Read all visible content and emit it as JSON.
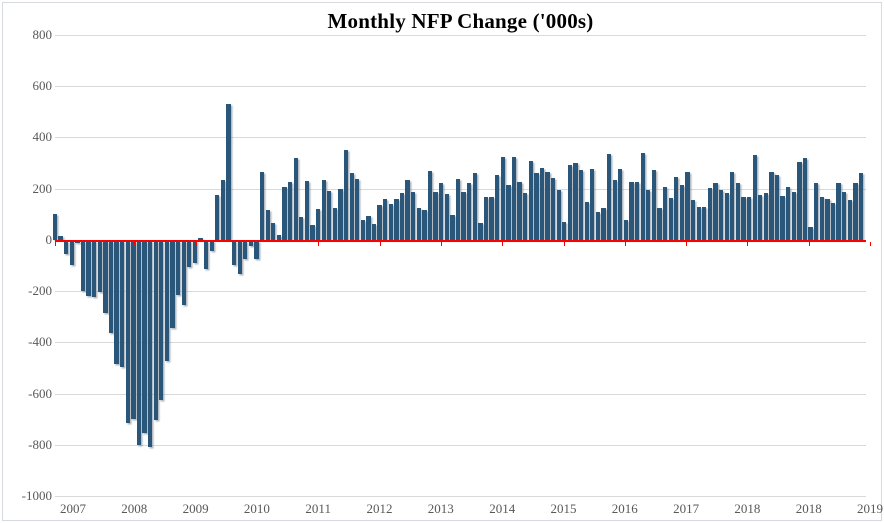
{
  "title": "Monthly NFP Change ('000s)",
  "colors": {
    "bar": "#2a5779",
    "zero_line": "#ff0000",
    "gridline": "#d9d9d9",
    "axis_text": "#595959",
    "title_text": "#000000",
    "frame_border": "#d6dade",
    "background": "#ffffff"
  },
  "y_axis": {
    "tick_labels": [
      "800",
      "600",
      "400",
      "200",
      "0",
      "-200",
      "-400",
      "-600",
      "-800",
      "-1000"
    ],
    "tick_values": [
      800,
      600,
      400,
      200,
      0,
      -200,
      -400,
      -600,
      -800,
      -1000
    ],
    "max": 800,
    "min": -1000
  },
  "x_axis": {
    "tick_labels": [
      "2007",
      "2008",
      "2009",
      "2010",
      "2011",
      "2012",
      "2013",
      "2014",
      "2015",
      "2016",
      "2017",
      "2018",
      "2018",
      "2019"
    ]
  },
  "chart_data": {
    "type": "bar",
    "title": "Monthly NFP Change ('000s)",
    "xlabel": "",
    "ylabel": "",
    "ylim": [
      -1000,
      800
    ],
    "grid": "horizontal",
    "legend": "none",
    "x_start": "2007-01",
    "x_end": "2019-01",
    "frequency": "monthly",
    "zero_axis_color": "#ff0000",
    "values": [
      100,
      15,
      -50,
      -95,
      -8,
      -195,
      -215,
      -220,
      -200,
      -280,
      -360,
      -480,
      -490,
      -710,
      -695,
      -795,
      -750,
      -805,
      -700,
      -620,
      -470,
      -340,
      -210,
      -250,
      -100,
      -85,
      8,
      -110,
      -40,
      175,
      235,
      530,
      -95,
      -130,
      -70,
      -20,
      -70,
      265,
      117,
      65,
      20,
      206,
      227,
      319,
      91,
      231,
      58,
      121,
      234,
      192,
      124,
      198,
      351,
      260,
      237,
      78,
      94,
      62,
      137,
      160,
      140,
      160,
      185,
      234,
      188,
      124,
      117,
      270,
      188,
      224,
      179,
      98,
      237,
      188,
      221,
      263,
      65,
      167,
      169,
      254,
      323,
      215,
      323,
      228,
      182,
      310,
      260,
      280,
      267,
      241,
      195,
      71,
      293,
      302,
      273,
      149,
      276,
      110,
      124,
      336,
      234,
      276,
      78,
      228,
      228,
      340,
      195,
      273,
      124,
      208,
      163,
      247,
      215,
      267,
      156,
      130,
      130,
      202,
      221,
      195,
      182,
      267,
      221,
      169,
      169,
      332,
      176,
      182,
      267,
      254,
      172,
      208,
      188,
      306,
      320,
      52,
      221,
      169,
      159,
      143,
      221,
      188,
      156,
      222,
      260
    ]
  }
}
